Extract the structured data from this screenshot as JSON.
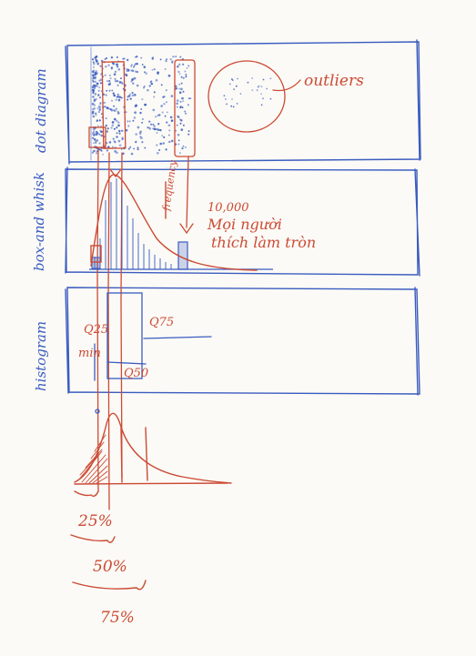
{
  "colors": {
    "pencil_blue": "#3a5cc0",
    "pencil_red": "#cc4a33",
    "paper": "#fbfaf6"
  },
  "panel_labels": {
    "dot_diagram": "dot diagram",
    "box_and_whisker": "box-and whisk",
    "histogram": "histogram"
  },
  "annotations": {
    "outliers": "outliers",
    "freq": "frequency",
    "count": "10,000",
    "note_line1": "Mọi người",
    "note_line2": "thích làm tròn",
    "q25": "Q25",
    "q75": "Q75",
    "min": "min",
    "q50": "Q50"
  },
  "percent_labels": {
    "p25": "25%",
    "p50": "50%",
    "p75": "75%"
  }
}
